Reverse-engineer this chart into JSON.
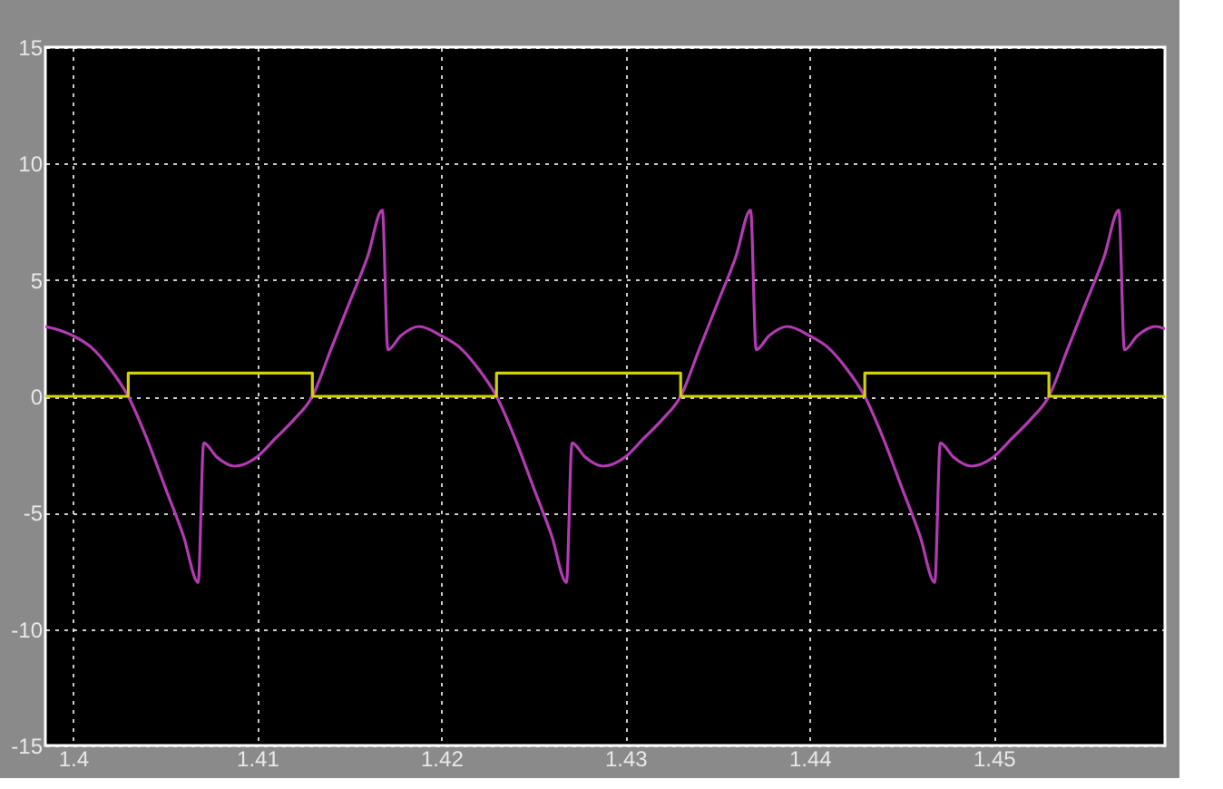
{
  "chart_data": {
    "type": "line",
    "xlim": [
      1.3985,
      1.4593
    ],
    "ylim": [
      -15,
      15
    ],
    "xticks": [
      1.4,
      1.41,
      1.42,
      1.43,
      1.44,
      1.45
    ],
    "yticks": [
      -15,
      -10,
      -5,
      0,
      5,
      10,
      15
    ],
    "grid": true,
    "line_style": "solid",
    "marker": "none",
    "series": [
      {
        "color": "#b33ab3",
        "x": [
          1.3985,
          1.399,
          1.4,
          1.401,
          1.402,
          1.403,
          1.404,
          1.405,
          1.406,
          1.4068,
          1.4071,
          1.4078,
          1.4088,
          1.41,
          1.411,
          1.412,
          1.413,
          1.414,
          1.415,
          1.416,
          1.4168,
          1.4171,
          1.4178,
          1.4188,
          1.42,
          1.421,
          1.422,
          1.423,
          1.424,
          1.425,
          1.426,
          1.4268,
          1.4271,
          1.4278,
          1.4288,
          1.43,
          1.431,
          1.432,
          1.433,
          1.434,
          1.435,
          1.436,
          1.4368,
          1.4371,
          1.4378,
          1.4388,
          1.44,
          1.441,
          1.442,
          1.443,
          1.444,
          1.445,
          1.446,
          1.4468,
          1.4471,
          1.4478,
          1.4488,
          1.45,
          1.451,
          1.452,
          1.453,
          1.454,
          1.455,
          1.456,
          1.4568,
          1.4571,
          1.4578,
          1.4588,
          1.4593
        ],
        "values": [
          3.0,
          2.9,
          2.6,
          2.1,
          1.2,
          0,
          -1.8,
          -3.9,
          -6.0,
          -8,
          -2,
          -2.6,
          -3,
          -2.6,
          -1.8,
          -1,
          0,
          2,
          4,
          6,
          8,
          2,
          2.6,
          3,
          2.6,
          2.1,
          1.2,
          0,
          -1.8,
          -3.9,
          -6.0,
          -8,
          -2,
          -2.6,
          -3,
          -2.6,
          -1.8,
          -1,
          0,
          2,
          4,
          6,
          8,
          2,
          2.6,
          3,
          2.6,
          2.1,
          1.2,
          0,
          -1.8,
          -3.9,
          -6.0,
          -8,
          -2,
          -2.6,
          -3,
          -2.6,
          -1.8,
          -1,
          0,
          2,
          4,
          6,
          8,
          2,
          2.6,
          3,
          2.9
        ]
      },
      {
        "type": "step",
        "color": "#d2d200",
        "x": [
          1.3985,
          1.403,
          1.413,
          1.423,
          1.433,
          1.443,
          1.453,
          1.4593
        ],
        "values": [
          0,
          1,
          0,
          1,
          0,
          1,
          0,
          0
        ]
      }
    ]
  }
}
